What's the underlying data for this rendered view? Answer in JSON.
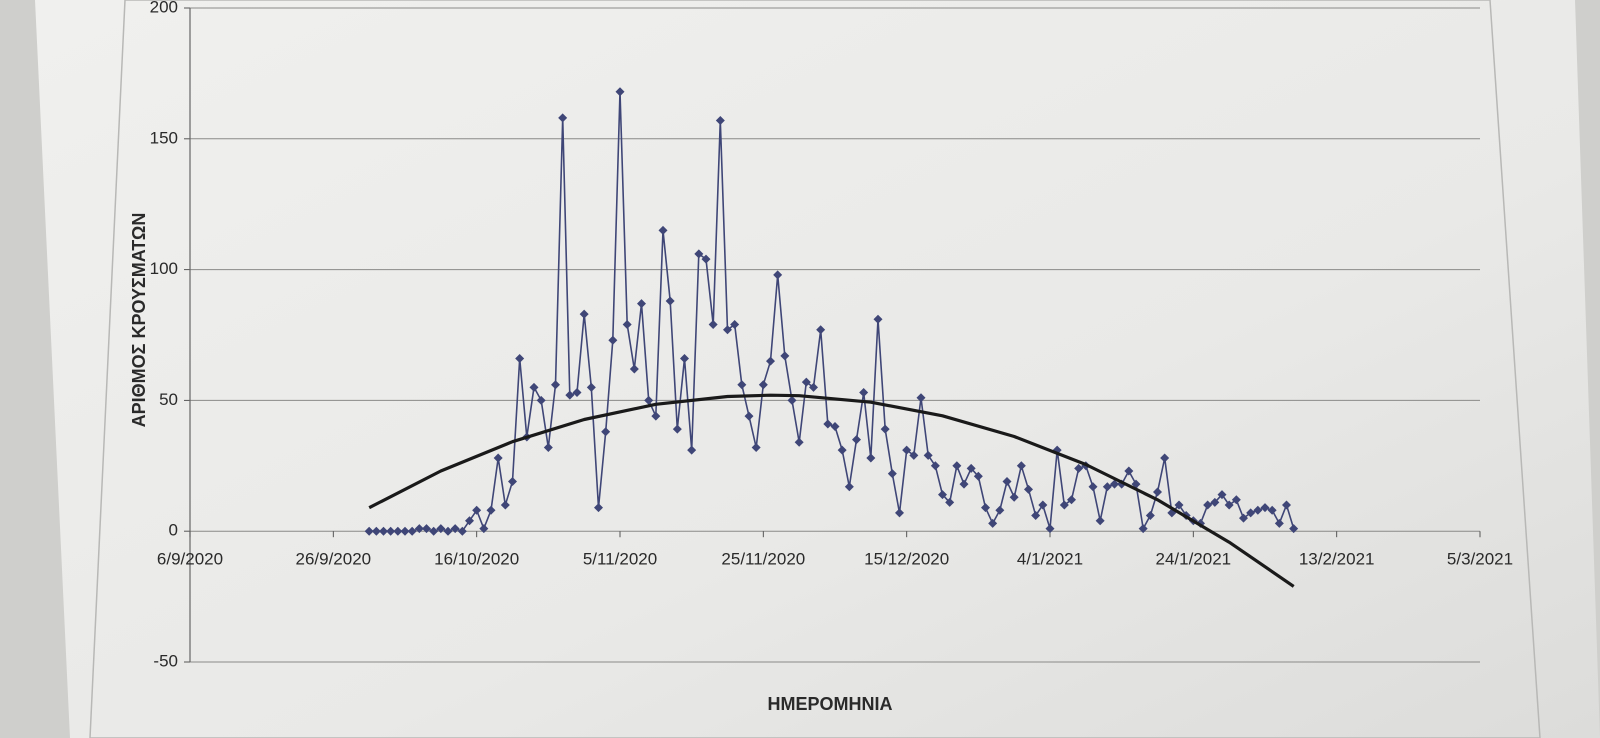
{
  "chart_data": {
    "type": "line",
    "x_label": "ΗΜΕΡΟΜΗΝΙΑ",
    "y_label": "ΑΡΙΘΜΟΣ ΚΡΟΥΣΜΑΤΩΝ",
    "x": [
      "1/10/2020",
      "2/10/2020",
      "3/10/2020",
      "4/10/2020",
      "5/10/2020",
      "6/10/2020",
      "7/10/2020",
      "8/10/2020",
      "9/10/2020",
      "10/10/2020",
      "11/10/2020",
      "12/10/2020",
      "13/10/2020",
      "14/10/2020",
      "15/10/2020",
      "16/10/2020",
      "17/10/2020",
      "18/10/2020",
      "19/10/2020",
      "20/10/2020",
      "21/10/2020",
      "22/10/2020",
      "23/10/2020",
      "24/10/2020",
      "25/10/2020",
      "26/10/2020",
      "27/10/2020",
      "28/10/2020",
      "29/10/2020",
      "30/10/2020",
      "31/10/2020",
      "1/11/2020",
      "2/11/2020",
      "3/11/2020",
      "4/11/2020",
      "5/11/2020",
      "6/11/2020",
      "7/11/2020",
      "8/11/2020",
      "9/11/2020",
      "10/11/2020",
      "11/11/2020",
      "12/11/2020",
      "13/11/2020",
      "14/11/2020",
      "15/11/2020",
      "16/11/2020",
      "17/11/2020",
      "18/11/2020",
      "19/11/2020",
      "20/11/2020",
      "21/11/2020",
      "22/11/2020",
      "23/11/2020",
      "24/11/2020",
      "25/11/2020",
      "26/11/2020",
      "27/11/2020",
      "28/11/2020",
      "29/11/2020",
      "30/11/2020",
      "1/12/2020",
      "2/12/2020",
      "3/12/2020",
      "4/12/2020",
      "5/12/2020",
      "6/12/2020",
      "7/12/2020",
      "8/12/2020",
      "9/12/2020",
      "10/12/2020",
      "11/12/2020",
      "12/12/2020",
      "13/12/2020",
      "14/12/2020",
      "15/12/2020",
      "16/12/2020",
      "17/12/2020",
      "18/12/2020",
      "19/12/2020",
      "20/12/2020",
      "21/12/2020",
      "22/12/2020",
      "23/12/2020",
      "24/12/2020",
      "25/12/2020",
      "26/12/2020",
      "27/12/2020",
      "28/12/2020",
      "29/12/2020",
      "30/12/2020",
      "31/12/2020",
      "1/1/2021",
      "2/1/2021",
      "3/1/2021",
      "4/1/2021",
      "5/1/2021",
      "6/1/2021",
      "7/1/2021",
      "8/1/2021",
      "9/1/2021",
      "10/1/2021",
      "11/1/2021",
      "12/1/2021",
      "13/1/2021",
      "14/1/2021",
      "15/1/2021",
      "16/1/2021",
      "17/1/2021",
      "18/1/2021",
      "19/1/2021",
      "20/1/2021",
      "21/1/2021",
      "22/1/2021",
      "23/1/2021",
      "24/1/2021",
      "25/1/2021",
      "26/1/2021",
      "27/1/2021",
      "28/1/2021",
      "29/1/2021",
      "30/1/2021",
      "31/1/2021",
      "1/2/2021",
      "2/2/2021",
      "3/2/2021",
      "4/2/2021",
      "5/2/2021",
      "6/2/2021",
      "7/2/2021"
    ],
    "series": [
      {
        "color": "#3f4677",
        "marker": "diamond",
        "values": [
          0,
          0,
          0,
          0,
          0,
          0,
          0,
          1,
          1,
          0,
          1,
          0,
          1,
          0,
          4,
          8,
          1,
          8,
          28,
          10,
          19,
          66,
          36,
          55,
          50,
          32,
          56,
          158,
          52,
          53,
          83,
          55,
          9,
          38,
          73,
          168,
          79,
          62,
          87,
          50,
          44,
          115,
          88,
          39,
          66,
          31,
          106,
          104,
          79,
          157,
          77,
          79,
          56,
          44,
          32,
          56,
          65,
          98,
          67,
          50,
          34,
          57,
          55,
          77,
          41,
          40,
          31,
          17,
          35,
          53,
          28,
          81,
          39,
          22,
          7,
          31,
          29,
          51,
          29,
          25,
          14,
          11,
          25,
          18,
          24,
          21,
          9,
          3,
          8,
          19,
          13,
          25,
          16,
          6,
          10,
          1,
          31,
          10,
          12,
          24,
          25,
          17,
          4,
          17,
          18,
          18,
          23,
          18,
          1,
          6,
          15,
          28,
          7,
          10,
          6,
          4,
          3,
          10,
          11,
          14,
          10,
          12,
          5,
          7,
          8,
          9,
          8,
          3,
          10,
          1
        ]
      },
      {
        "color": "#1a1a1a",
        "x": [
          "1/10/2020",
          "11/10/2020",
          "21/10/2020",
          "31/10/2020",
          "10/11/2020",
          "20/11/2020",
          "26/11/2020",
          "30/11/2020",
          "10/12/2020",
          "20/12/2020",
          "30/12/2020",
          "9/1/2021",
          "19/1/2021",
          "29/1/2021",
          "7/2/2021"
        ],
        "values": [
          9,
          23,
          34.2,
          42.7,
          48.5,
          51.5,
          52,
          51.8,
          49.3,
          44.1,
          36.2,
          25.5,
          12,
          -4.2,
          -21.1
        ]
      }
    ],
    "xlim": [
      "6/9/2020",
      "5/3/2021"
    ],
    "xticks": [
      "6/9/2020",
      "26/9/2020",
      "16/10/2020",
      "5/11/2020",
      "25/11/2020",
      "15/12/2020",
      "4/1/2021",
      "24/1/2021",
      "13/2/2021",
      "5/3/2021"
    ],
    "ylim": [
      -50,
      200
    ],
    "yticks": [
      -50,
      0,
      50,
      100,
      150,
      200
    ],
    "grid": true
  }
}
